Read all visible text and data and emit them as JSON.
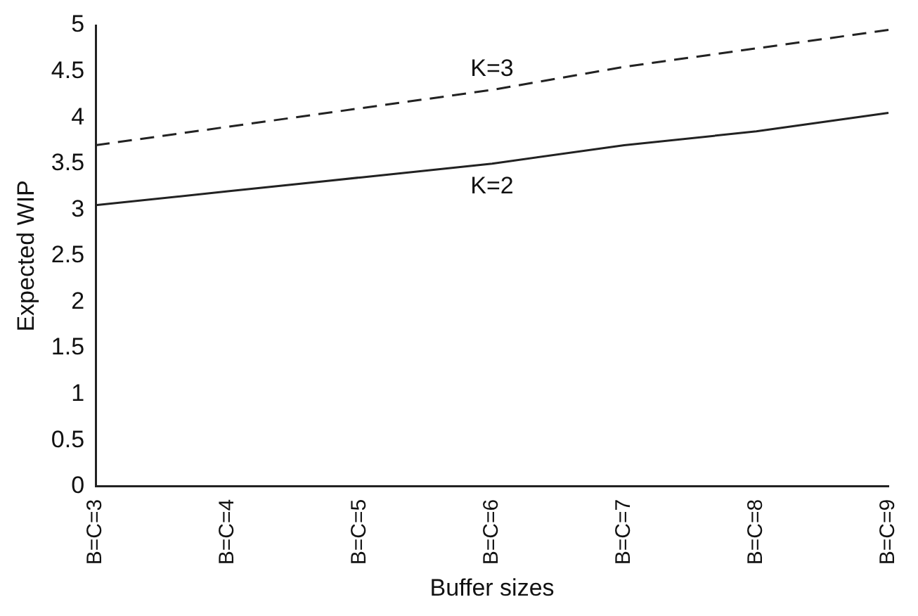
{
  "chart_data": {
    "type": "line",
    "xlabel": "Buffer sizes",
    "ylabel": "Expected WIP",
    "categories": [
      "B=C=3",
      "B=C=4",
      "B=C=5",
      "B=C=6",
      "B=C=7",
      "B=C=8",
      "B=C=9"
    ],
    "series": [
      {
        "name": "K=3",
        "color": "#222222",
        "line_style": "dashed",
        "values": [
          3.7,
          3.9,
          4.1,
          4.3,
          4.55,
          4.75,
          4.95
        ]
      },
      {
        "name": "K=2",
        "color": "#222222",
        "line_style": "solid",
        "values": [
          3.05,
          3.2,
          3.35,
          3.5,
          3.7,
          3.85,
          4.05
        ]
      }
    ],
    "ylim": [
      0,
      5
    ],
    "yticks": [
      0,
      0.5,
      1,
      1.5,
      2,
      2.5,
      3,
      3.5,
      4,
      4.5,
      5
    ],
    "grid": false,
    "legend": false,
    "marker": "none"
  }
}
